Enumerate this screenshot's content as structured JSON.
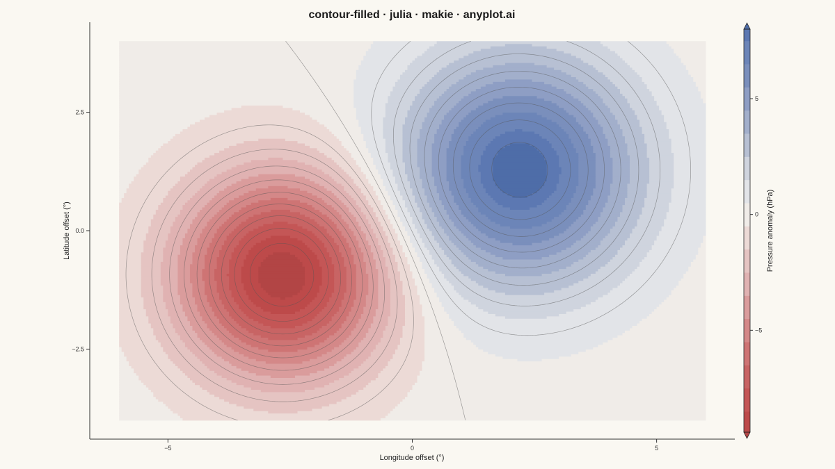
{
  "chart_data": {
    "type": "heatmap",
    "subtype": "filled-contour",
    "title": "contour-filled · julia · makie · anyplot.ai",
    "xlabel": "Longitude offset (°)",
    "ylabel": "Latitude offset (°)",
    "xlim": [
      -6,
      6
    ],
    "ylim": [
      -4,
      4
    ],
    "axis_range": {
      "x": [
        -6.6,
        6.6
      ],
      "y": [
        -4.4,
        4.4
      ]
    },
    "x_ticks": [
      {
        "value": -5,
        "label": "−5"
      },
      {
        "value": 0,
        "label": "0"
      },
      {
        "value": 5,
        "label": "5"
      }
    ],
    "y_ticks": [
      {
        "value": -2.5,
        "label": "−2.5"
      },
      {
        "value": 0,
        "label": "0.0"
      },
      {
        "value": 2.5,
        "label": "2.5"
      }
    ],
    "field": {
      "low": {
        "center": [
          -2.64,
          -0.92
        ],
        "amplitude": -10,
        "sigma": 1.5
      },
      "high": {
        "center": [
          2.18,
          1.28
        ],
        "amplitude": 8.5,
        "sigma": 1.7
      }
    },
    "levels": [
      -10,
      -9,
      -8,
      -7,
      -6,
      -5,
      -4,
      -3,
      -2,
      -1,
      0,
      1,
      2,
      3,
      4,
      5,
      6,
      7,
      8,
      9
    ],
    "colorbar": {
      "label": "Pressure anomaly (hPa)",
      "range": [
        -9.4,
        8.0
      ],
      "ticks": [
        {
          "value": -5,
          "label": "−5"
        },
        {
          "value": 0,
          "label": "0"
        },
        {
          "value": 5,
          "label": "5"
        }
      ],
      "bands": [
        {
          "lo": -9.4,
          "hi": -8.5,
          "color": "#BD4A4A"
        },
        {
          "lo": -8.5,
          "hi": -7.5,
          "color": "#C45656"
        },
        {
          "lo": -7.5,
          "hi": -6.5,
          "color": "#C86464"
        },
        {
          "lo": -6.5,
          "hi": -5.5,
          "color": "#CE7474"
        },
        {
          "lo": -5.5,
          "hi": -4.5,
          "color": "#D48888"
        },
        {
          "lo": -4.5,
          "hi": -3.5,
          "color": "#DA9C9C"
        },
        {
          "lo": -3.5,
          "hi": -2.5,
          "color": "#E0B2B2"
        },
        {
          "lo": -2.5,
          "hi": -1.5,
          "color": "#E5C4C2"
        },
        {
          "lo": -1.5,
          "hi": -0.5,
          "color": "#ECDAD6"
        },
        {
          "lo": -0.5,
          "hi": 0.5,
          "color": "#F0ECE8"
        },
        {
          "lo": 0.5,
          "hi": 1.5,
          "color": "#E2E4E8"
        },
        {
          "lo": 1.5,
          "hi": 2.5,
          "color": "#CFD4DE"
        },
        {
          "lo": 2.5,
          "hi": 3.5,
          "color": "#B7C0D3"
        },
        {
          "lo": 3.5,
          "hi": 4.5,
          "color": "#A2AFCB"
        },
        {
          "lo": 4.5,
          "hi": 5.5,
          "color": "#8E9EC4"
        },
        {
          "lo": 5.5,
          "hi": 6.5,
          "color": "#7A8FBC"
        },
        {
          "lo": 6.5,
          "hi": 7.5,
          "color": "#6C85B8"
        },
        {
          "lo": 7.5,
          "hi": 8.0,
          "color": "#5C78B2"
        }
      ],
      "extend_low_color": "#B24545",
      "extend_high_color": "#4E6DA8"
    },
    "colors": {
      "background": "#FAF8F2",
      "axis": "#333333",
      "contour_line": "#555555"
    },
    "grid": false,
    "legend": "colorbar-right"
  }
}
